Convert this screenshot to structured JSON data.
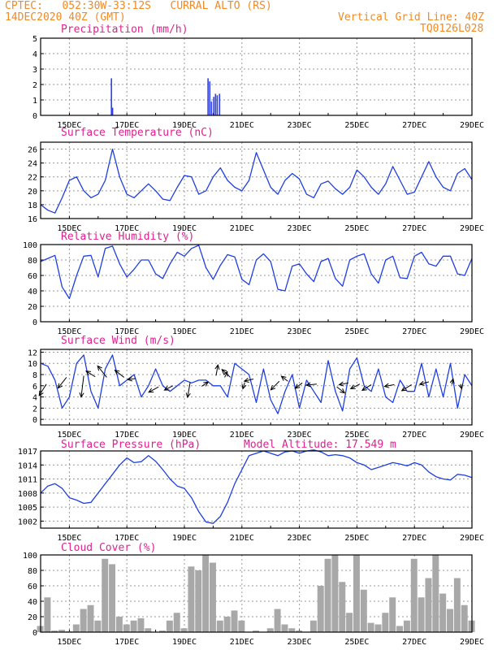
{
  "header": {
    "line1_left": "CPTEC:   052:30W-33:12S   CURRAL ALTO (RS)",
    "line2_left": "14DEC2020 40Z (GMT)",
    "line1_right": "Vertical Grid Line: 40Z",
    "line2_right": "TQ0126L028"
  },
  "colors": {
    "line": "#1f3fe0",
    "bars": "#3040e8",
    "cloud": "#a8a8a8",
    "title": "#e0208f",
    "header": "#f08a24"
  },
  "x_axis": {
    "tick_labels": [
      "15DEC",
      "17DEC",
      "19DEC",
      "21DEC",
      "23DEC",
      "25DEC",
      "27DEC",
      "29DEC"
    ],
    "range_days": [
      0,
      15
    ]
  },
  "panels": {
    "precip": {
      "title": "Precipitation  (mm/h)"
    },
    "temp": {
      "title": "Surface Temperature (nC)"
    },
    "rh": {
      "title": "Relative Humidity (%)"
    },
    "wind": {
      "title": "Surface Wind (m/s)"
    },
    "pres": {
      "title": "Surface Pressure (hPa)",
      "extra": "Model Altitude: 17.549  m"
    },
    "cloud": {
      "title": "Cloud Cover (%)"
    }
  },
  "chart_data": [
    {
      "type": "bar",
      "name": "precip",
      "title": "Precipitation  (mm/h)",
      "ylim": [
        0,
        5
      ],
      "yticks": [
        0,
        1,
        2,
        3,
        4,
        5
      ],
      "points": [
        [
          2.44,
          2.4
        ],
        [
          2.48,
          0.5
        ],
        [
          5.8,
          2.4
        ],
        [
          5.86,
          2.2
        ],
        [
          5.92,
          0.9
        ],
        [
          6.0,
          1.2
        ],
        [
          6.06,
          1.4
        ],
        [
          6.12,
          1.3
        ],
        [
          6.2,
          1.4
        ]
      ]
    },
    {
      "type": "line",
      "name": "temp",
      "title": "Surface Temperature (nC)",
      "ylim": [
        16,
        27
      ],
      "yticks": [
        16,
        18,
        20,
        22,
        24,
        26
      ],
      "x": [
        0,
        0.25,
        0.5,
        0.75,
        1,
        1.25,
        1.5,
        1.75,
        2,
        2.25,
        2.5,
        2.75,
        3,
        3.25,
        3.5,
        3.75,
        4,
        4.25,
        4.5,
        4.75,
        5,
        5.25,
        5.5,
        5.75,
        6,
        6.25,
        6.5,
        6.75,
        7,
        7.25,
        7.5,
        7.75,
        8,
        8.25,
        8.5,
        8.75,
        9,
        9.25,
        9.5,
        9.75,
        10,
        10.25,
        10.5,
        10.75,
        11,
        11.25,
        11.5,
        11.75,
        12,
        12.25,
        12.5,
        12.75,
        13,
        13.25,
        13.5,
        13.75,
        14,
        14.25,
        14.5,
        14.75,
        15
      ],
      "y": [
        18,
        17.2,
        16.8,
        19,
        21.5,
        22,
        20,
        19,
        19.5,
        21.5,
        26,
        22,
        19.5,
        19,
        20,
        21,
        20,
        18.8,
        18.6,
        20.5,
        22.2,
        22,
        19.5,
        20,
        22,
        23.3,
        21.5,
        20.5,
        20,
        21.5,
        25.5,
        23,
        20.5,
        19.5,
        21.5,
        22.5,
        21.7,
        19.5,
        19,
        21,
        21.4,
        20.3,
        19.5,
        20.5,
        23,
        22,
        20.5,
        19.5,
        21,
        23.5,
        21.5,
        19.5,
        19.8,
        22,
        24.2,
        22,
        20.5,
        20,
        22.5,
        23.2,
        21.6
      ],
      "xlabel": "",
      "ylabel": ""
    },
    {
      "type": "line",
      "name": "rh",
      "title": "Relative Humidity (%)",
      "ylim": [
        0,
        100
      ],
      "yticks": [
        0,
        20,
        40,
        60,
        80,
        100
      ],
      "x": [
        0,
        0.25,
        0.5,
        0.75,
        1,
        1.25,
        1.5,
        1.75,
        2,
        2.25,
        2.5,
        2.75,
        3,
        3.25,
        3.5,
        3.75,
        4,
        4.25,
        4.5,
        4.75,
        5,
        5.25,
        5.5,
        5.75,
        6,
        6.25,
        6.5,
        6.75,
        7,
        7.25,
        7.5,
        7.75,
        8,
        8.25,
        8.5,
        8.75,
        9,
        9.25,
        9.5,
        9.75,
        10,
        10.25,
        10.5,
        10.75,
        11,
        11.25,
        11.5,
        11.75,
        12,
        12.25,
        12.5,
        12.75,
        13,
        13.25,
        13.5,
        13.75,
        14,
        14.25,
        14.5,
        14.75,
        15
      ],
      "y": [
        78,
        82,
        86,
        45,
        30,
        60,
        85,
        86,
        58,
        95,
        98,
        75,
        58,
        68,
        80,
        80,
        62,
        56,
        75,
        90,
        85,
        95,
        99,
        70,
        55,
        73,
        87,
        84,
        55,
        48,
        80,
        88,
        78,
        42,
        40,
        72,
        75,
        62,
        52,
        78,
        82,
        56,
        46,
        80,
        85,
        88,
        62,
        50,
        80,
        85,
        57,
        56,
        85,
        90,
        75,
        72,
        85,
        85,
        62,
        60,
        82
      ],
      "xlabel": "",
      "ylabel": ""
    },
    {
      "type": "line",
      "name": "wind",
      "title": "Surface Wind (m/s)",
      "ylim": [
        -1,
        12.5
      ],
      "yticks": [
        0,
        2,
        4,
        6,
        8,
        10,
        12
      ],
      "x": [
        0,
        0.25,
        0.5,
        0.75,
        1,
        1.25,
        1.5,
        1.75,
        2,
        2.25,
        2.5,
        2.75,
        3,
        3.25,
        3.5,
        3.75,
        4,
        4.25,
        4.5,
        4.75,
        5,
        5.25,
        5.5,
        5.75,
        6,
        6.25,
        6.5,
        6.75,
        7,
        7.25,
        7.5,
        7.75,
        8,
        8.25,
        8.5,
        8.75,
        9,
        9.25,
        9.5,
        9.75,
        10,
        10.25,
        10.5,
        10.75,
        11,
        11.25,
        11.5,
        11.75,
        12,
        12.25,
        12.5,
        12.75,
        13,
        13.25,
        13.5,
        13.75,
        14,
        14.25,
        14.5,
        14.75,
        15
      ],
      "y": [
        10,
        9.5,
        7,
        2,
        4,
        10,
        11.5,
        5,
        2,
        9,
        11.5,
        6,
        7,
        8,
        4,
        6,
        9,
        6,
        5,
        6,
        7,
        6.5,
        7,
        7,
        6,
        6,
        4,
        10,
        9,
        8,
        3,
        9,
        3.5,
        1,
        5,
        8,
        2,
        7,
        5,
        3,
        10.5,
        5,
        1.5,
        9,
        11,
        6,
        5,
        9,
        4,
        3,
        7,
        5,
        5,
        10,
        4,
        9,
        4,
        10,
        2,
        8,
        6
      ],
      "vectors": [
        {
          "x": 0.2,
          "y": 6.3,
          "u": -1.1,
          "v": -3.2
        },
        {
          "x": 0.9,
          "y": 7.5,
          "u": -1.3,
          "v": -3
        },
        {
          "x": 1.5,
          "y": 7.8,
          "u": -0.4,
          "v": -6
        },
        {
          "x": 1.9,
          "y": 7.6,
          "u": -1.4,
          "v": 1.6
        },
        {
          "x": 2.3,
          "y": 7.5,
          "u": -1.4,
          "v": 3.2
        },
        {
          "x": 2.9,
          "y": 7.5,
          "u": -1.4,
          "v": 2
        },
        {
          "x": 3.3,
          "y": 7.3,
          "u": -1.2,
          "v": -0.3
        },
        {
          "x": 4.1,
          "y": 5.8,
          "u": -1.5,
          "v": -1.5
        },
        {
          "x": 4.6,
          "y": 6,
          "u": -1.3,
          "v": -1.2
        },
        {
          "x": 5.2,
          "y": 6.6,
          "u": -0.4,
          "v": -4.2
        },
        {
          "x": 5.6,
          "y": 5.9,
          "u": 1,
          "v": 1.2
        },
        {
          "x": 6.1,
          "y": 7.8,
          "u": 0.3,
          "v": 3
        },
        {
          "x": 6.4,
          "y": 7.5,
          "u": 0.4,
          "v": 1.6
        },
        {
          "x": 6.6,
          "y": 7.5,
          "u": -1.3,
          "v": 2.2
        },
        {
          "x": 7.1,
          "y": 6.6,
          "u": -0.3,
          "v": -1.8
        },
        {
          "x": 7.4,
          "y": 7.2,
          "u": -1.4,
          "v": -0.6
        },
        {
          "x": 8.3,
          "y": 6.8,
          "u": -1.3,
          "v": -2.4
        },
        {
          "x": 8.6,
          "y": 6.8,
          "u": -1,
          "v": 1.4
        },
        {
          "x": 9.1,
          "y": 6.5,
          "u": -1.1,
          "v": -1.5
        },
        {
          "x": 9.6,
          "y": 6.3,
          "u": -1.6,
          "v": -0.3
        },
        {
          "x": 10.3,
          "y": 5.8,
          "u": 1.2,
          "v": -1.7
        },
        {
          "x": 10.7,
          "y": 6.5,
          "u": -1.4,
          "v": -0.5
        },
        {
          "x": 11.1,
          "y": 6.3,
          "u": -1.4,
          "v": -1.3
        },
        {
          "x": 11.5,
          "y": 6.2,
          "u": -1.4,
          "v": -1.6
        },
        {
          "x": 12.3,
          "y": 6.2,
          "u": -1.5,
          "v": -0.5
        },
        {
          "x": 12.9,
          "y": 6.2,
          "u": -1.5,
          "v": -1.7
        },
        {
          "x": 13.5,
          "y": 6.7,
          "u": -1.4,
          "v": -0.7
        },
        {
          "x": 14.3,
          "y": 6.2,
          "u": 0.2,
          "v": 1.6
        },
        {
          "x": 14.6,
          "y": 6.3,
          "u": 0.2,
          "v": -1.3
        }
      ],
      "xlabel": "",
      "ylabel": ""
    },
    {
      "type": "line",
      "name": "pres",
      "title": "Surface Pressure (hPa)",
      "ylim": [
        1000.5,
        1017
      ],
      "yticks": [
        1002,
        1005,
        1008,
        1011,
        1014,
        1017
      ],
      "x": [
        0,
        0.25,
        0.5,
        0.75,
        1,
        1.25,
        1.5,
        1.75,
        2,
        2.25,
        2.5,
        2.75,
        3,
        3.25,
        3.5,
        3.75,
        4,
        4.25,
        4.5,
        4.75,
        5,
        5.25,
        5.5,
        5.75,
        6,
        6.25,
        6.5,
        6.75,
        7,
        7.25,
        7.5,
        7.75,
        8,
        8.25,
        8.5,
        8.75,
        9,
        9.25,
        9.5,
        9.75,
        10,
        10.25,
        10.5,
        10.75,
        11,
        11.25,
        11.5,
        11.75,
        12,
        12.25,
        12.5,
        12.75,
        13,
        13.25,
        13.5,
        13.75,
        14,
        14.25,
        14.5,
        14.75,
        15
      ],
      "y": [
        1008,
        1009.5,
        1010,
        1009,
        1007,
        1006.5,
        1005.8,
        1006,
        1008,
        1010,
        1012,
        1014,
        1015.5,
        1014.5,
        1014.7,
        1016,
        1014.8,
        1013,
        1011,
        1009.5,
        1009,
        1007,
        1004,
        1001.8,
        1001.5,
        1003,
        1006,
        1010,
        1013,
        1016,
        1016.5,
        1017,
        1016.5,
        1016,
        1016.8,
        1017,
        1016.5,
        1017,
        1017.2,
        1016.8,
        1016,
        1016.2,
        1016,
        1015.5,
        1014.5,
        1014,
        1013,
        1013.5,
        1014,
        1014.5,
        1014.2,
        1013.8,
        1014.5,
        1014,
        1012.5,
        1011.5,
        1011,
        1010.8,
        1012,
        1011.8,
        1011.3
      ],
      "xlabel": "",
      "ylabel": ""
    },
    {
      "type": "area",
      "name": "cloud",
      "title": "Cloud Cover (%)",
      "ylim": [
        0,
        100
      ],
      "yticks": [
        0,
        20,
        40,
        60,
        80,
        100
      ],
      "x": [
        0,
        0.25,
        0.5,
        0.75,
        1,
        1.25,
        1.5,
        1.75,
        2,
        2.25,
        2.5,
        2.75,
        3,
        3.25,
        3.5,
        3.75,
        4,
        4.25,
        4.5,
        4.75,
        5,
        5.25,
        5.5,
        5.75,
        6,
        6.25,
        6.5,
        6.75,
        7,
        7.25,
        7.5,
        7.75,
        8,
        8.25,
        8.5,
        8.75,
        9,
        9.25,
        9.5,
        9.75,
        10,
        10.25,
        10.5,
        10.75,
        11,
        11.25,
        11.5,
        11.75,
        12,
        12.25,
        12.5,
        12.75,
        13,
        13.25,
        13.5,
        13.75,
        14,
        14.25,
        14.5,
        14.75,
        15
      ],
      "y": [
        8,
        45,
        2,
        3,
        1,
        10,
        30,
        35,
        15,
        95,
        88,
        20,
        10,
        15,
        18,
        5,
        0,
        2,
        15,
        25,
        5,
        85,
        80,
        100,
        90,
        15,
        20,
        28,
        15,
        0,
        2,
        0,
        5,
        30,
        10,
        5,
        2,
        0,
        15,
        60,
        95,
        100,
        65,
        25,
        100,
        55,
        12,
        10,
        25,
        45,
        8,
        15,
        95,
        45,
        70,
        100,
        50,
        30,
        70,
        35,
        15
      ],
      "xlabel": "",
      "ylabel": ""
    }
  ]
}
